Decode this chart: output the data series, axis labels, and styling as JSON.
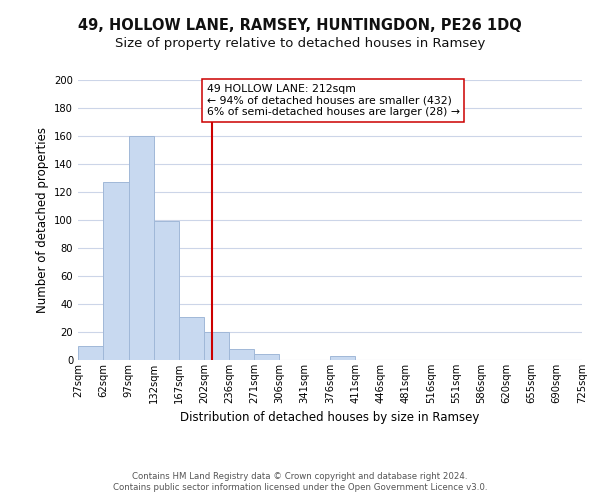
{
  "title1": "49, HOLLOW LANE, RAMSEY, HUNTINGDON, PE26 1DQ",
  "title2": "Size of property relative to detached houses in Ramsey",
  "xlabel": "Distribution of detached houses by size in Ramsey",
  "ylabel": "Number of detached properties",
  "bar_color": "#c8d9f0",
  "bar_edge_color": "#a0b8d8",
  "bin_edges": [
    27,
    62,
    97,
    132,
    167,
    202,
    236,
    271,
    306,
    341,
    376,
    411,
    446,
    481,
    516,
    551,
    586,
    620,
    655,
    690,
    725
  ],
  "bar_heights": [
    10,
    127,
    160,
    99,
    31,
    20,
    8,
    4,
    0,
    0,
    3,
    0,
    0,
    0,
    0,
    0,
    0,
    0,
    0,
    0
  ],
  "x_tick_labels": [
    "27sqm",
    "62sqm",
    "97sqm",
    "132sqm",
    "167sqm",
    "202sqm",
    "236sqm",
    "271sqm",
    "306sqm",
    "341sqm",
    "376sqm",
    "411sqm",
    "446sqm",
    "481sqm",
    "516sqm",
    "551sqm",
    "586sqm",
    "620sqm",
    "655sqm",
    "690sqm",
    "725sqm"
  ],
  "ylim": [
    0,
    200
  ],
  "yticks": [
    0,
    20,
    40,
    60,
    80,
    100,
    120,
    140,
    160,
    180,
    200
  ],
  "vline_x": 212,
  "vline_color": "#cc0000",
  "annotation_text": "49 HOLLOW LANE: 212sqm\n← 94% of detached houses are smaller (432)\n6% of semi-detached houses are larger (28) →",
  "annotation_box_color": "#ffffff",
  "annotation_border_color": "#cc0000",
  "footer1": "Contains HM Land Registry data © Crown copyright and database right 2024.",
  "footer2": "Contains public sector information licensed under the Open Government Licence v3.0.",
  "background_color": "#ffffff",
  "grid_color": "#ccd5e8",
  "title1_fontsize": 10.5,
  "title2_fontsize": 9.5,
  "tick_fontsize": 7.2,
  "ylabel_fontsize": 8.5,
  "xlabel_fontsize": 8.5,
  "footer_fontsize": 6.2,
  "annotation_fontsize": 7.8
}
